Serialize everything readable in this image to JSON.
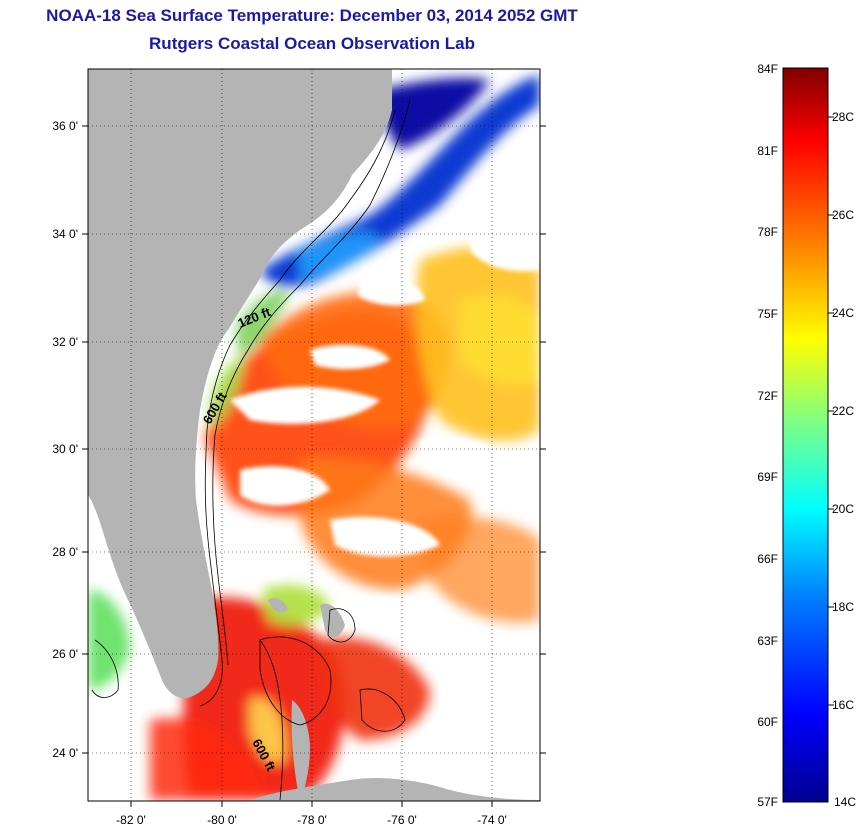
{
  "header": {
    "title": "NOAA-18 Sea Surface Temperature:  December 03, 2014 2052 GMT",
    "subtitle": "Rutgers Coastal Ocean Observation Lab"
  },
  "map": {
    "lat_ticks": [
      "36 0'",
      "34 0'",
      "32 0'",
      "30 0'",
      "28 0'",
      "26 0'",
      "24 0'"
    ],
    "lon_ticks": [
      "-82 0'",
      "-80 0'",
      "-78 0'",
      "-76 0'",
      "-74 0'"
    ],
    "contour_labels": [
      "120 ft",
      "600 ft",
      "600 ft"
    ],
    "land_color": "#b4b4b4"
  },
  "colorbar": {
    "fahrenheit": [
      "84F",
      "81F",
      "78F",
      "75F",
      "72F",
      "69F",
      "66F",
      "63F",
      "60F",
      "57F"
    ],
    "celsius": [
      "28C",
      "26C",
      "24C",
      "22C",
      "20C",
      "18C",
      "16C",
      "14C"
    ],
    "gradient": [
      "#00008f",
      "#0000ff",
      "#0080ff",
      "#00ffff",
      "#80ff80",
      "#ffff00",
      "#ff8000",
      "#ff0000",
      "#800000"
    ]
  }
}
